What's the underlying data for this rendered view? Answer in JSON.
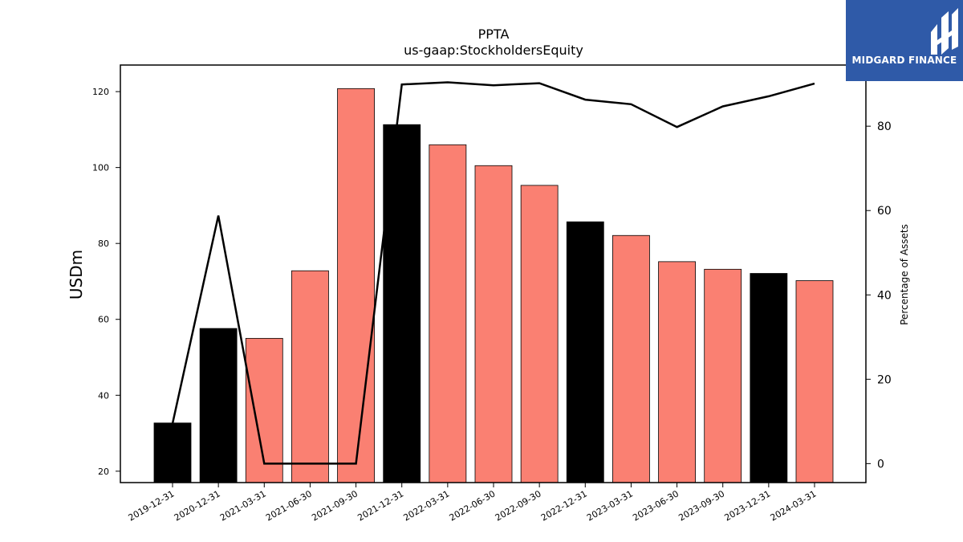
{
  "logo": {
    "text": "MIDGARD FINANCE",
    "background": "#2f5aa8"
  },
  "chart_data": {
    "type": "bar",
    "title": "PPTA",
    "subtitle": "us-gaap:StockholdersEquity",
    "ylabel": "USDm",
    "y2label": "Percentage of Assets",
    "ylim": [
      17,
      127
    ],
    "y2lim": [
      -4.5,
      94.5
    ],
    "yticks": [
      20,
      40,
      60,
      80,
      100,
      120
    ],
    "y2ticks": [
      0,
      20,
      40,
      60,
      80
    ],
    "categories": [
      "2019-12-31",
      "2020-12-31",
      "2021-03-31",
      "2021-06-30",
      "2021-09-30",
      "2021-12-31",
      "2022-03-31",
      "2022-06-30",
      "2022-09-30",
      "2022-12-31",
      "2023-03-31",
      "2023-06-30",
      "2023-09-30",
      "2023-12-31",
      "2024-03-31"
    ],
    "values": [
      32.7,
      57.6,
      55.0,
      72.8,
      120.8,
      111.3,
      106.0,
      100.5,
      95.3,
      85.7,
      82.1,
      75.2,
      73.2,
      72.1,
      70.2
    ],
    "bar_colors": [
      "#000000",
      "#000000",
      "#fa8072",
      "#fa8072",
      "#fa8072",
      "#000000",
      "#fa8072",
      "#fa8072",
      "#fa8072",
      "#000000",
      "#fa8072",
      "#fa8072",
      "#fa8072",
      "#000000",
      "#fa8072"
    ],
    "line": {
      "axis": "y2",
      "color": "#000000",
      "values": [
        9.5,
        58.8,
        0.0,
        0.0,
        0.0,
        89.9,
        90.4,
        89.7,
        90.2,
        86.3,
        85.2,
        79.8,
        84.7,
        87.1,
        90.1
      ]
    }
  }
}
